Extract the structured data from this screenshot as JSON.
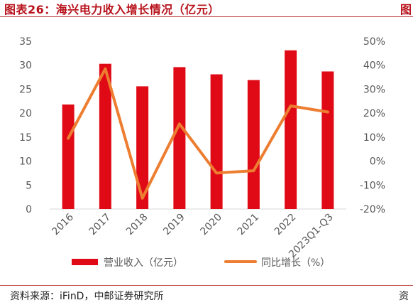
{
  "header": {
    "title": "图表26：海兴电力收入增长情况（亿元）",
    "title_right_fragment": "图"
  },
  "footer": {
    "source": "资料来源：iFinD，中邮证券研究所",
    "source_right_fragment": "资"
  },
  "colors": {
    "bar": "#e00a16",
    "line": "#ed7d31",
    "accent": "#b8121b"
  },
  "chart_data": {
    "type": "bar",
    "categories": [
      "2016",
      "2017",
      "2018",
      "2019",
      "2020",
      "2021",
      "2022",
      "2023Q1-Q3"
    ],
    "series": [
      {
        "name": "营业收入（亿元）",
        "type": "bar",
        "axis": "left",
        "values": [
          21.8,
          30.3,
          25.6,
          29.6,
          28.1,
          26.9,
          33.1,
          28.7
        ]
      },
      {
        "name": "同比增长（%）",
        "type": "line",
        "axis": "right",
        "values": [
          9.5,
          38.5,
          -15.5,
          15.5,
          -5.0,
          -4.0,
          23.0,
          20.5
        ]
      }
    ],
    "y_left": {
      "min": 0,
      "max": 35,
      "step": 5,
      "ticks": [
        "0",
        "5",
        "10",
        "15",
        "20",
        "25",
        "30",
        "35"
      ]
    },
    "y_right": {
      "min": -20,
      "max": 50,
      "step": 10,
      "ticks": [
        "-20%",
        "-10%",
        "0%",
        "10%",
        "20%",
        "30%",
        "40%",
        "50%"
      ]
    },
    "grid": false,
    "legend": "bottom"
  }
}
